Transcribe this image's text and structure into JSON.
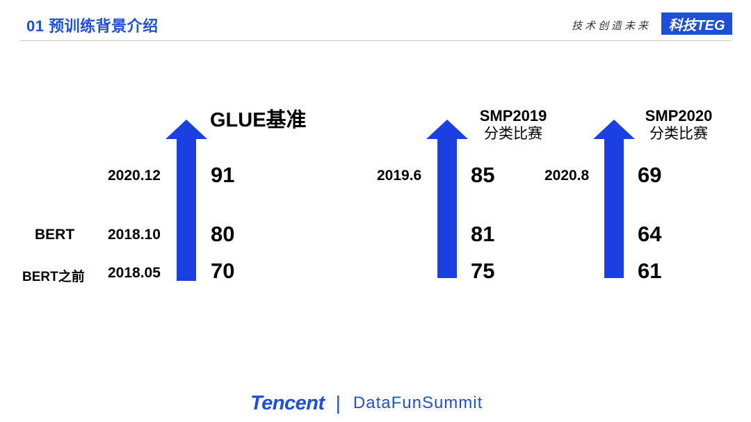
{
  "header": {
    "title": "01 预训练背景介绍",
    "slogan": "技术创造未来",
    "brand": "科技TEG"
  },
  "colors": {
    "accent": "#1f4fd8",
    "arrow": "#1b3fe0",
    "text": "#000000"
  },
  "icons": [
    "up-arrow-icon"
  ],
  "benchmarks": [
    {
      "id": "glue",
      "title": "GLUE基准",
      "subtitle": "",
      "model_labels": [
        "",
        "BERT",
        "BERT之前"
      ],
      "dates": [
        "2020.12",
        "2018.10",
        "2018.05"
      ],
      "scores": [
        "91",
        "80",
        "70"
      ]
    },
    {
      "id": "smp2019",
      "title": "SMP2019",
      "subtitle": "分类比赛",
      "dates": [
        "2019.6",
        "",
        ""
      ],
      "scores": [
        "85",
        "81",
        "75"
      ]
    },
    {
      "id": "smp2020",
      "title": "SMP2020",
      "subtitle": "分类比赛",
      "dates": [
        "2020.8",
        "",
        ""
      ],
      "scores": [
        "69",
        "64",
        "61"
      ]
    }
  ],
  "footer": {
    "company": "Tencent",
    "separator": "|",
    "event": "DataFunSummit"
  }
}
